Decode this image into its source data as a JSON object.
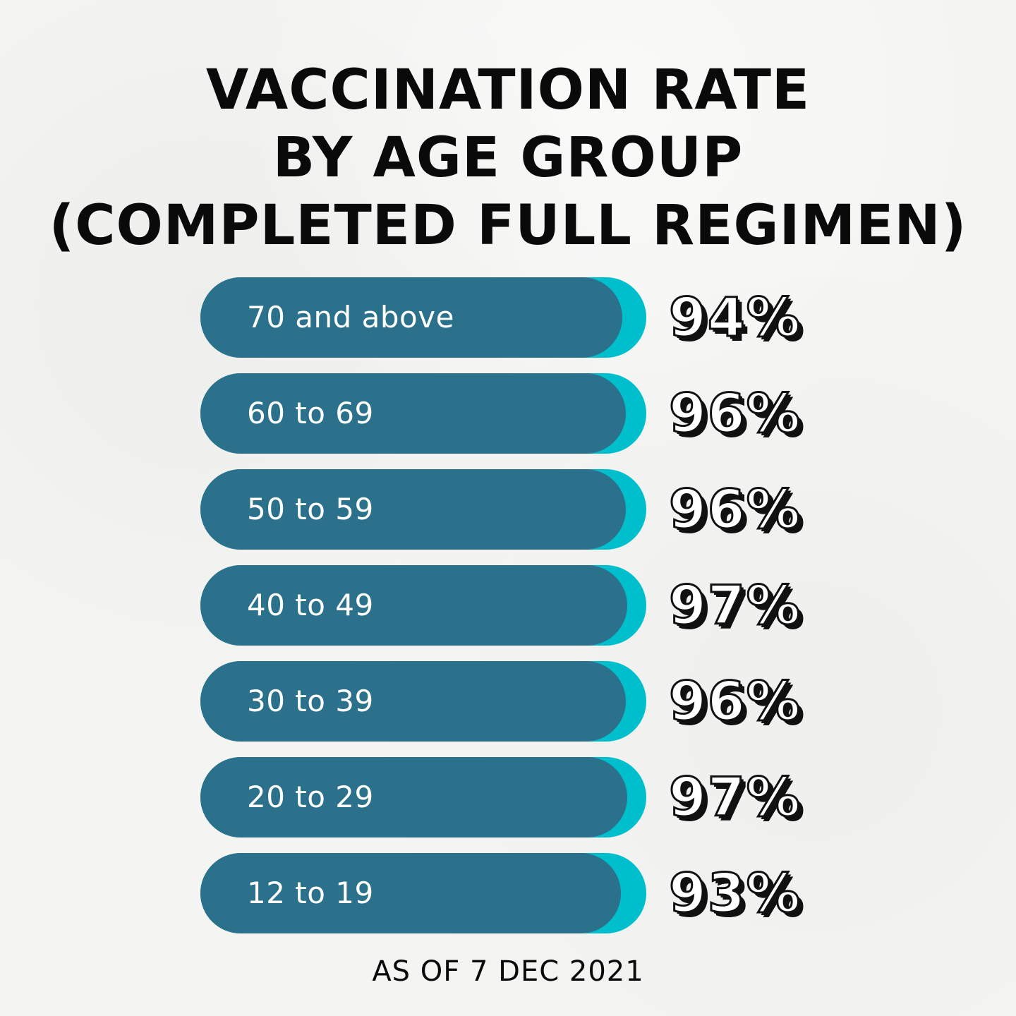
{
  "title_lines": [
    "VACCINATION RATE",
    "BY AGE GROUP",
    "(COMPLETED FULL REGIMEN)"
  ],
  "footnote": "AS OF 7 DEC 2021",
  "colors": {
    "bar": "#2b718c",
    "bar_track": "#00bfcc",
    "background": "#f4f4f2",
    "text": "#0a0a0a"
  },
  "chart_data": {
    "type": "bar",
    "orientation": "horizontal",
    "title": "VACCINATION RATE BY AGE GROUP (COMPLETED FULL REGIMEN)",
    "categories": [
      "70 and above",
      "60 to 69",
      "50 to 59",
      "40 to 49",
      "30 to 39",
      "20 to 29",
      "12 to 19"
    ],
    "values": [
      94,
      96,
      96,
      97,
      96,
      97,
      93
    ],
    "value_labels": [
      "94%",
      "96%",
      "96%",
      "97%",
      "96%",
      "97%",
      "93%"
    ],
    "unit": "%",
    "xlim": [
      0,
      100
    ],
    "grid": false,
    "legend": "none"
  }
}
